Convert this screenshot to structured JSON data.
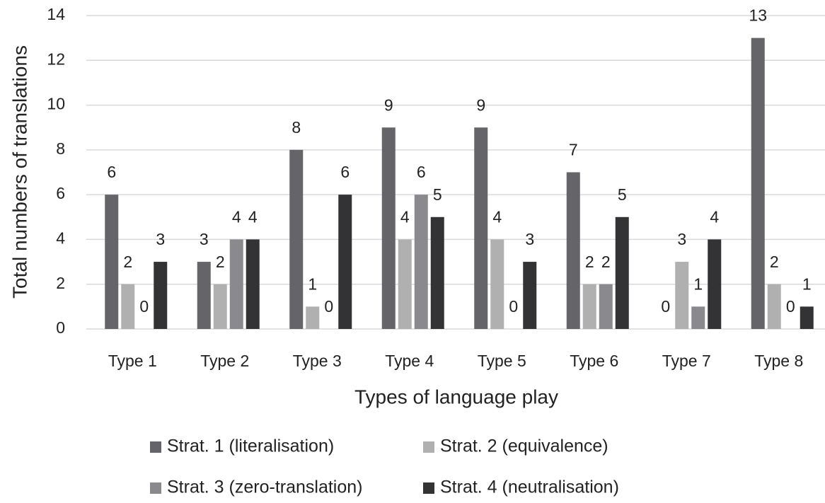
{
  "chart_data": {
    "type": "bar",
    "x_label": "Types of language play",
    "y_label": "Total numbers of translations",
    "categories": [
      "Type 1",
      "Type 2",
      "Type 3",
      "Type 4",
      "Type 5",
      "Type 6",
      "Type 7",
      "Type 8"
    ],
    "series": [
      {
        "name": "Strat. 1 (literalisation)",
        "color": "#646469",
        "values": [
          6,
          3,
          8,
          9,
          9,
          7,
          0,
          13
        ]
      },
      {
        "name": "Strat. 2 (equivalence)",
        "color": "#b0b0b0",
        "values": [
          2,
          2,
          1,
          4,
          4,
          2,
          3,
          2
        ]
      },
      {
        "name": "Strat. 3 (zero-translation)",
        "color": "#8a8a8e",
        "values": [
          0,
          4,
          0,
          6,
          0,
          2,
          1,
          0
        ]
      },
      {
        "name": "Strat. 4 (neutralisation)",
        "color": "#333336",
        "values": [
          3,
          4,
          6,
          5,
          3,
          5,
          4,
          1
        ]
      }
    ],
    "ylim": [
      0,
      14
    ],
    "yticks": [
      0,
      2,
      4,
      6,
      8,
      10,
      12,
      14
    ],
    "grid": true,
    "legend": "bottom"
  }
}
